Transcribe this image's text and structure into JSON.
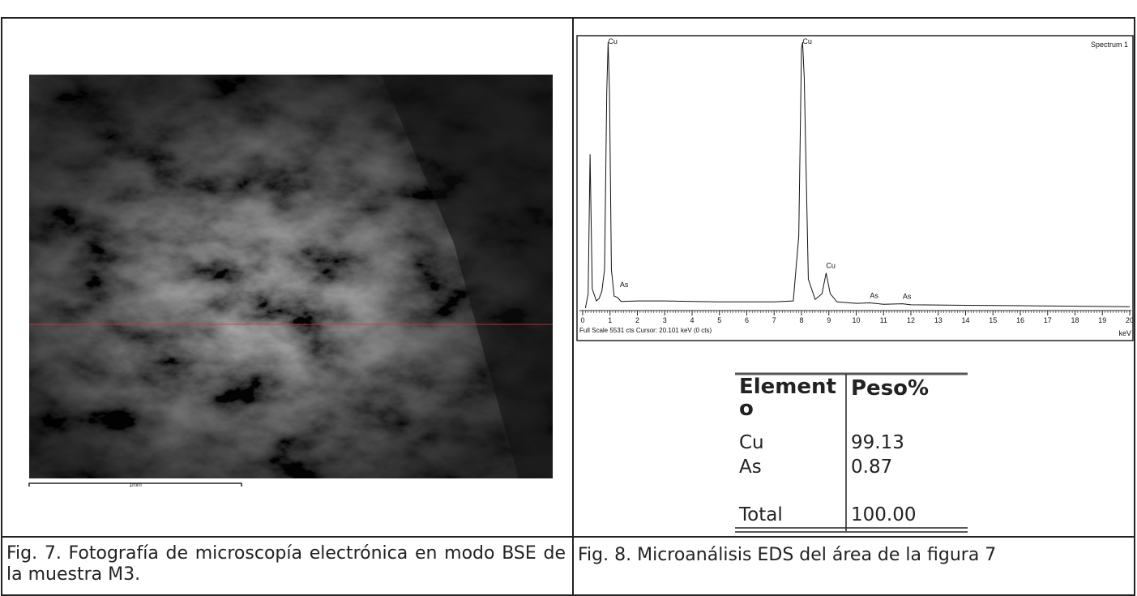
{
  "figure7": {
    "scale_label": "1mm",
    "caption": "Fig. 7. Fotografía de microscopía electrónica en modo BSE de la muestra M3."
  },
  "figure8": {
    "spectrum": {
      "title": "Spectrum 1",
      "x": [
        0.1,
        0.2,
        0.27,
        0.35,
        0.5,
        0.6,
        0.7,
        0.8,
        0.88,
        0.93,
        0.98,
        1.05,
        1.15,
        1.28,
        1.4,
        2,
        3,
        4,
        5,
        6,
        7,
        7.7,
        7.9,
        8.0,
        8.04,
        8.1,
        8.25,
        8.5,
        8.75,
        8.9,
        9.05,
        9.3,
        10,
        10.5,
        11,
        11.7,
        12,
        14,
        16,
        18,
        20
      ],
      "counts": [
        0,
        300,
        3200,
        400,
        150,
        200,
        350,
        800,
        4500,
        5531,
        4500,
        800,
        250,
        220,
        140,
        150,
        150,
        140,
        130,
        130,
        130,
        150,
        1500,
        5400,
        5531,
        4800,
        600,
        180,
        300,
        730,
        300,
        130,
        100,
        110,
        80,
        90,
        70,
        60,
        50,
        40,
        30
      ],
      "xlim": [
        0,
        20
      ],
      "ylim": [
        0,
        5531
      ],
      "xticks": [
        0,
        1,
        2,
        3,
        4,
        5,
        6,
        7,
        8,
        9,
        10,
        11,
        12,
        13,
        14,
        15,
        16,
        17,
        18,
        19,
        20
      ],
      "x_unit": "keV",
      "status": "Full Scale 5531 cts  Cursor: 20.101 keV (0 cts)",
      "peaks": [
        {
          "label": "Cu",
          "x": 0.93
        },
        {
          "label": "As",
          "x": 1.36
        },
        {
          "label": "Cu",
          "x": 8.04
        },
        {
          "label": "Cu",
          "x": 8.9
        },
        {
          "label": "As",
          "x": 10.5
        },
        {
          "label": "As",
          "x": 11.7
        }
      ]
    },
    "table": {
      "header": [
        "Elemento",
        "Peso%"
      ],
      "rows": [
        [
          "Cu",
          "99.13"
        ],
        [
          "As",
          "0.87"
        ]
      ],
      "total": [
        "Total",
        "100.00"
      ]
    },
    "caption": "Fig. 8. Microanálisis EDS del área de la figura 7"
  }
}
